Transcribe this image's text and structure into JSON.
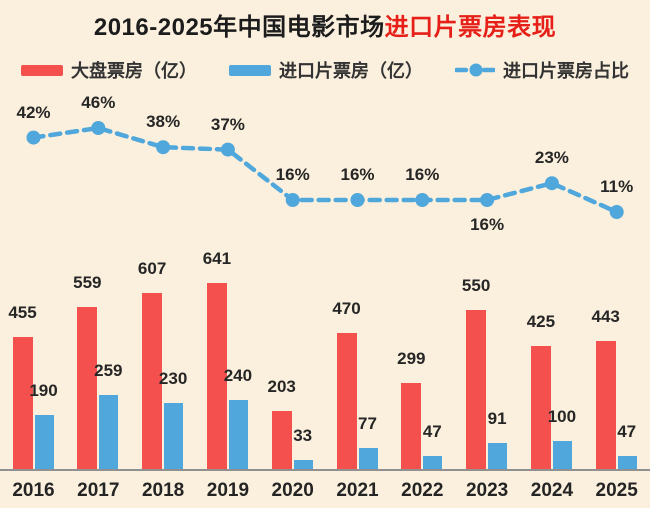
{
  "title": {
    "text_black": "2016-2025年中国电影市场",
    "text_red": "进口片票房表现"
  },
  "colors": {
    "background": "#FBF0DE",
    "bar_total": "#F4514E",
    "bar_import": "#4FA7DC",
    "line_share": "#4FA7DC",
    "title_highlight": "#E62019",
    "axis": "#909090",
    "text": "#262626"
  },
  "legend": {
    "items": [
      {
        "label": "大盘票房（亿）",
        "marker": "red-bar-swatch"
      },
      {
        "label": "进口片票房（亿）",
        "marker": "blue-bar-swatch"
      },
      {
        "label": "进口片票房占比",
        "marker": "dashed-line-dot"
      }
    ]
  },
  "chart_data": {
    "type": "bar",
    "subtype": "grouped-bars-with-dashed-percentage-line",
    "title": "2016-2025年中国电影市场进口片票房表现",
    "categories": [
      "2016",
      "2017",
      "2018",
      "2019",
      "2020",
      "2021",
      "2022",
      "2023",
      "2024",
      "2025"
    ],
    "series": [
      {
        "name": "大盘票房（亿）",
        "type": "bar",
        "color": "#F4514E",
        "values": [
          455,
          559,
          607,
          641,
          203,
          470,
          299,
          550,
          425,
          443
        ]
      },
      {
        "name": "进口片票房（亿）",
        "type": "bar",
        "color": "#4FA7DC",
        "values": [
          190,
          259,
          230,
          240,
          33,
          77,
          47,
          91,
          100,
          47
        ]
      },
      {
        "name": "进口片票房占比",
        "type": "line",
        "style": "dashed",
        "unit": "%",
        "color": "#4FA7DC",
        "values": [
          42,
          46,
          38,
          37,
          16,
          16,
          16,
          16,
          23,
          11
        ],
        "label_positions": [
          "above",
          "above",
          "above",
          "above",
          "above",
          "above",
          "above",
          "below",
          "above",
          "above"
        ]
      }
    ],
    "xlabel": "",
    "ylabel": "",
    "value_labels_shown": true,
    "grid": false,
    "legend_position": "top",
    "baseline_axis_shown": true
  }
}
